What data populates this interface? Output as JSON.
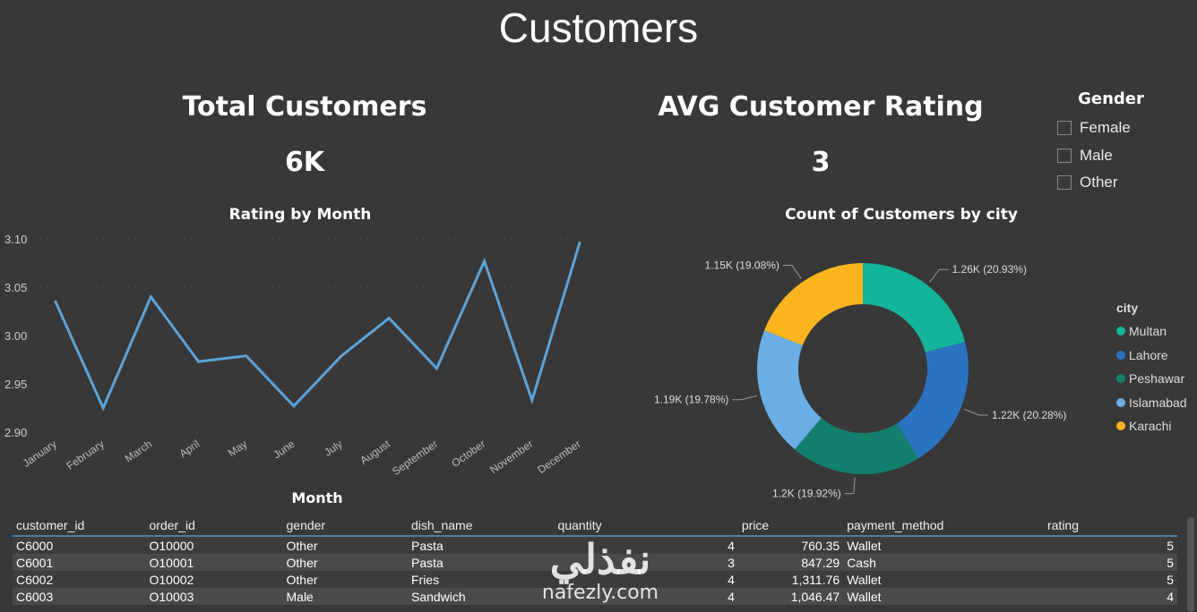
{
  "page_title": "Customers",
  "cards": {
    "total_customers": {
      "label": "Total Customers",
      "value": "6K"
    },
    "avg_rating": {
      "label": "AVG Customer Rating",
      "value": "3"
    }
  },
  "gender_slicer": {
    "title": "Gender",
    "options": [
      {
        "label": "Female",
        "checked": false
      },
      {
        "label": "Male",
        "checked": false
      },
      {
        "label": "Other",
        "checked": false
      }
    ]
  },
  "chart_data": [
    {
      "type": "line",
      "title": "Rating by Month",
      "xlabel": "Month",
      "ylabel": "",
      "categories": [
        "January",
        "February",
        "March",
        "April",
        "May",
        "June",
        "July",
        "August",
        "September",
        "October",
        "November",
        "December"
      ],
      "values": [
        3.035,
        2.925,
        3.04,
        2.973,
        2.979,
        2.927,
        2.979,
        3.018,
        2.966,
        3.077,
        2.933,
        3.096
      ],
      "ylim": [
        2.9,
        3.1
      ],
      "yticks": [
        "2.90",
        "2.95",
        "3.00",
        "3.05",
        "3.10"
      ],
      "grid": true,
      "color": "#5ba3d9"
    },
    {
      "type": "pie",
      "donut": true,
      "title": "Count of Customers by city",
      "legend_title": "city",
      "legend_position": "right",
      "slices": [
        {
          "name": "Multan",
          "value": 1.26,
          "label": "1.26K (20.93%)",
          "color": "#12b59a"
        },
        {
          "name": "Lahore",
          "value": 1.22,
          "label": "1.22K (20.28%)",
          "color": "#2a73c0"
        },
        {
          "name": "Peshawar",
          "value": 1.2,
          "label": "1.2K (19.92%)",
          "color": "#13806e"
        },
        {
          "name": "Islamabad",
          "value": 1.19,
          "label": "1.19K (19.78%)",
          "color": "#6aaee6"
        },
        {
          "name": "Karachi",
          "value": 1.15,
          "label": "1.15K (19.08%)",
          "color": "#fab41e"
        }
      ]
    }
  ],
  "table": {
    "columns": [
      "customer_id",
      "order_id",
      "gender",
      "dish_name",
      "quantity",
      "price",
      "payment_method",
      "rating"
    ],
    "rows": [
      [
        "C6000",
        "O10000",
        "Other",
        "Pasta",
        "4",
        "760.35",
        "Wallet",
        "5"
      ],
      [
        "C6001",
        "O10001",
        "Other",
        "Pasta",
        "3",
        "847.29",
        "Cash",
        "5"
      ],
      [
        "C6002",
        "O10002",
        "Other",
        "Fries",
        "4",
        "1,311.76",
        "Wallet",
        "5"
      ],
      [
        "C6003",
        "O10003",
        "Male",
        "Sandwich",
        "4",
        "1,046.47",
        "Wallet",
        "4"
      ]
    ]
  },
  "watermark": {
    "arabic": "نفذلي",
    "latin": "nafezly.com"
  }
}
